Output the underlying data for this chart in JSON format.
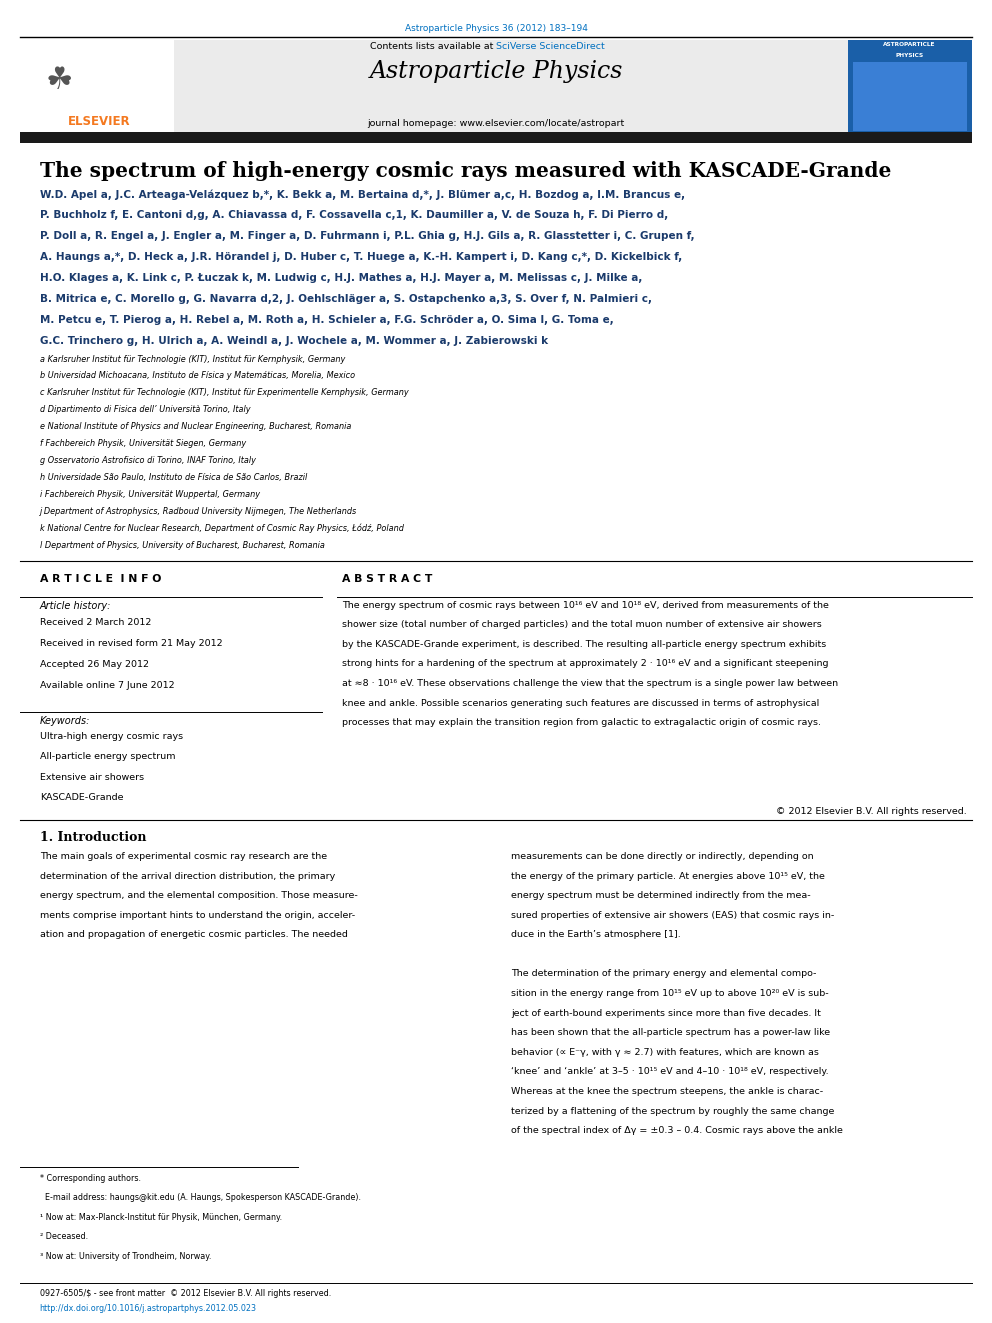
{
  "page_width": 9.92,
  "page_height": 13.23,
  "background": "#ffffff",
  "top_journal_ref": "Astroparticle Physics 36 (2012) 183–194",
  "journal_name": "Astroparticle Physics",
  "journal_homepage": "journal homepage: www.elsevier.com/locate/astropart",
  "contents_line": "Contents lists available at SciVerse ScienceDirect",
  "paper_title": "The spectrum of high-energy cosmic rays measured with KASCADE-Grande",
  "article_info_header": "A R T I C L E  I N F O",
  "article_history_header": "Article history:",
  "received": "Received 2 March 2012",
  "received_revised": "Received in revised form 21 May 2012",
  "accepted": "Accepted 26 May 2012",
  "available_online": "Available online 7 June 2012",
  "keywords_header": "Keywords:",
  "keywords": [
    "Ultra-high energy cosmic rays",
    "All-particle energy spectrum",
    "Extensive air showers",
    "KASCADE-Grande"
  ],
  "abstract_header": "A B S T R A C T",
  "abstract_text": "The energy spectrum of cosmic rays between 10¹⁶ eV and 10¹⁸ eV, derived from measurements of the shower size (total number of charged particles) and the total muon number of extensive air showers by the KASCADE-Grande experiment, is described. The resulting all-particle energy spectrum exhibits strong hints for a hardening of the spectrum at approximately 2 · 10¹⁶ eV and a significant steepening at ≈8 · 10¹⁶ eV. These observations challenge the view that the spectrum is a single power law between knee and ankle. Possible scenarios generating such features are discussed in terms of astrophysical processes that may explain the transition region from galactic to extragalactic origin of cosmic rays.",
  "copyright": "© 2012 Elsevier B.V. All rights reserved.",
  "intro_heading": "1. Introduction",
  "footnote_star": "* Corresponding authors.",
  "footnote_email": "  E-mail address: haungs@kit.edu (A. Haungs, Spokesperson KASCADE-Grande).",
  "footnote_1": "¹ Now at: Max-Planck-Institut für Physik, München, Germany.",
  "footnote_2": "² Deceased.",
  "footnote_3": "³ Now at: University of Trondheim, Norway.",
  "issn_line": "0927-6505/$ - see front matter  © 2012 Elsevier B.V. All rights reserved.",
  "doi_line": "http://dx.doi.org/10.1016/j.astropartphys.2012.05.023",
  "elsevier_orange": "#f47920",
  "link_blue": "#0070c0",
  "header_gray": "#ebebeb",
  "dark_blue_text": "#1a3a6b",
  "black_bar_color": "#1a1a1a",
  "author_lines": [
    "W.D. Apel a, J.C. Arteaga-Velázquez b,*, K. Bekk a, M. Bertaina d,*, J. Blümer a,c, H. Bozdog a, I.M. Brancus e,",
    "P. Buchholz f, E. Cantoni d,g, A. Chiavassa d, F. Cossavella c,1, K. Daumiller a, V. de Souza h, F. Di Pierro d,",
    "P. Doll a, R. Engel a, J. Engler a, M. Finger a, D. Fuhrmann i, P.L. Ghia g, H.J. Gils a, R. Glasstetter i, C. Grupen f,",
    "A. Haungs a,*, D. Heck a, J.R. Hörandel j, D. Huber c, T. Huege a, K.-H. Kampert i, D. Kang c,*, D. Kickelbick f,",
    "H.O. Klages a, K. Link c, P. Łuczak k, M. Ludwig c, H.J. Mathes a, H.J. Mayer a, M. Melissas c, J. Milke a,",
    "B. Mitrica e, C. Morello g, G. Navarra d,2, J. Oehlschläger a, S. Ostapchenko a,3, S. Over f, N. Palmieri c,",
    "M. Petcu e, T. Pierog a, H. Rebel a, M. Roth a, H. Schieler a, F.G. Schröder a, O. Sima l, G. Toma e,",
    "G.C. Trinchero g, H. Ulrich a, A. Weindl a, J. Wochele a, M. Wommer a, J. Zabierowski k"
  ],
  "affil_lines": [
    "a Karlsruher Institut für Technologie (KIT), Institut für Kernphysik, Germany",
    "b Universidad Michoacana, Instituto de Física y Matemáticas, Morelia, Mexico",
    "c Karlsruher Institut für Technologie (KIT), Institut für Experimentelle Kernphysik, Germany",
    "d Dipartimento di Fisica dell’ Università Torino, Italy",
    "e National Institute of Physics and Nuclear Engineering, Bucharest, Romania",
    "f Fachbereich Physik, Universität Siegen, Germany",
    "g Osservatorio Astrofisico di Torino, INAF Torino, Italy",
    "h Universidade São Paulo, Instituto de Física de São Carlos, Brazil",
    "i Fachbereich Physik, Universität Wuppertal, Germany",
    "j Department of Astrophysics, Radboud University Nijmegen, The Netherlands",
    "k National Centre for Nuclear Research, Department of Cosmic Ray Physics, Łódź, Poland",
    "l Department of Physics, University of Bucharest, Bucharest, Romania"
  ],
  "intro_col1_lines": [
    "The main goals of experimental cosmic ray research are the",
    "determination of the arrival direction distribution, the primary",
    "energy spectrum, and the elemental composition. Those measure-",
    "ments comprise important hints to understand the origin, acceler-",
    "ation and propagation of energetic cosmic particles. The needed"
  ],
  "intro_col2_lines": [
    "measurements can be done directly or indirectly, depending on",
    "the energy of the primary particle. At energies above 10¹⁵ eV, the",
    "energy spectrum must be determined indirectly from the mea-",
    "sured properties of extensive air showers (EAS) that cosmic rays in-",
    "duce in the Earth’s atmosphere [1].",
    "",
    "The determination of the primary energy and elemental compo-",
    "sition in the energy range from 10¹⁵ eV up to above 10²⁰ eV is sub-",
    "ject of earth-bound experiments since more than five decades. It",
    "has been shown that the all-particle spectrum has a power-law like",
    "behavior (∝ E⁻γ, with γ ≈ 2.7) with features, which are known as",
    "‘knee’ and ‘ankle’ at 3–5 · 10¹⁵ eV and 4–10 · 10¹⁸ eV, respectively.",
    "Whereas at the knee the spectrum steepens, the ankle is charac-",
    "terized by a flattening of the spectrum by roughly the same change",
    "of the spectral index of Δγ = ±0.3 – 0.4. Cosmic rays above the ankle"
  ]
}
